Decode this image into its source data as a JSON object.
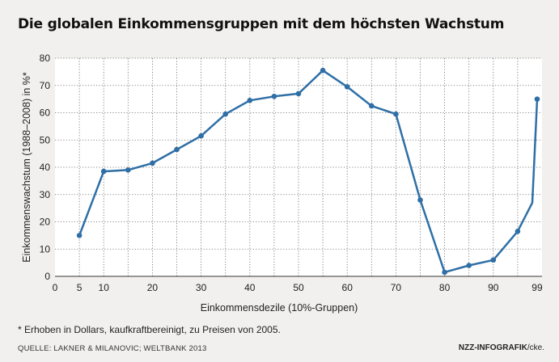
{
  "title": "Die globalen Einkommensgruppen mit dem höchsten Wachstum",
  "footnote": "* Erhoben in Dollars, kaufkraftbereinigt, zu Preisen von 2005.",
  "source": "QUELLE: LAKNER & MILANOVIC; WELTBANK 2013",
  "credit": {
    "brand": "NZZ-INFOGRAFIK",
    "suffix": "/cke."
  },
  "colors": {
    "line": "#2f6fa6",
    "plot_background": "#ffffff",
    "grid": "#666666"
  },
  "chart_data": {
    "type": "line",
    "title": "Die globalen Einkommensgruppen mit dem höchsten Wachstum",
    "xlabel": "Einkommensdezile (10%-Gruppen)",
    "ylabel": "Einkommenswachstum (1988–2008) in %*",
    "xlim": [
      0,
      100
    ],
    "ylim": [
      0,
      80
    ],
    "xticks": [
      0,
      5,
      10,
      20,
      30,
      40,
      50,
      60,
      70,
      80,
      90,
      99
    ],
    "yticks": [
      0,
      10,
      20,
      30,
      40,
      50,
      60,
      70,
      80
    ],
    "grid": true,
    "series": [
      {
        "x": [
          5,
          10,
          15,
          20,
          25,
          30,
          35,
          40,
          45,
          50,
          55,
          60,
          65,
          70,
          75,
          80,
          85,
          90,
          95,
          98,
          99
        ],
        "y": [
          15,
          38.5,
          39,
          41.5,
          46.5,
          51.5,
          59.5,
          64.5,
          66,
          67,
          75.5,
          69.5,
          62.5,
          59.5,
          28,
          1.5,
          4,
          6,
          16.5,
          27,
          65
        ]
      }
    ]
  }
}
